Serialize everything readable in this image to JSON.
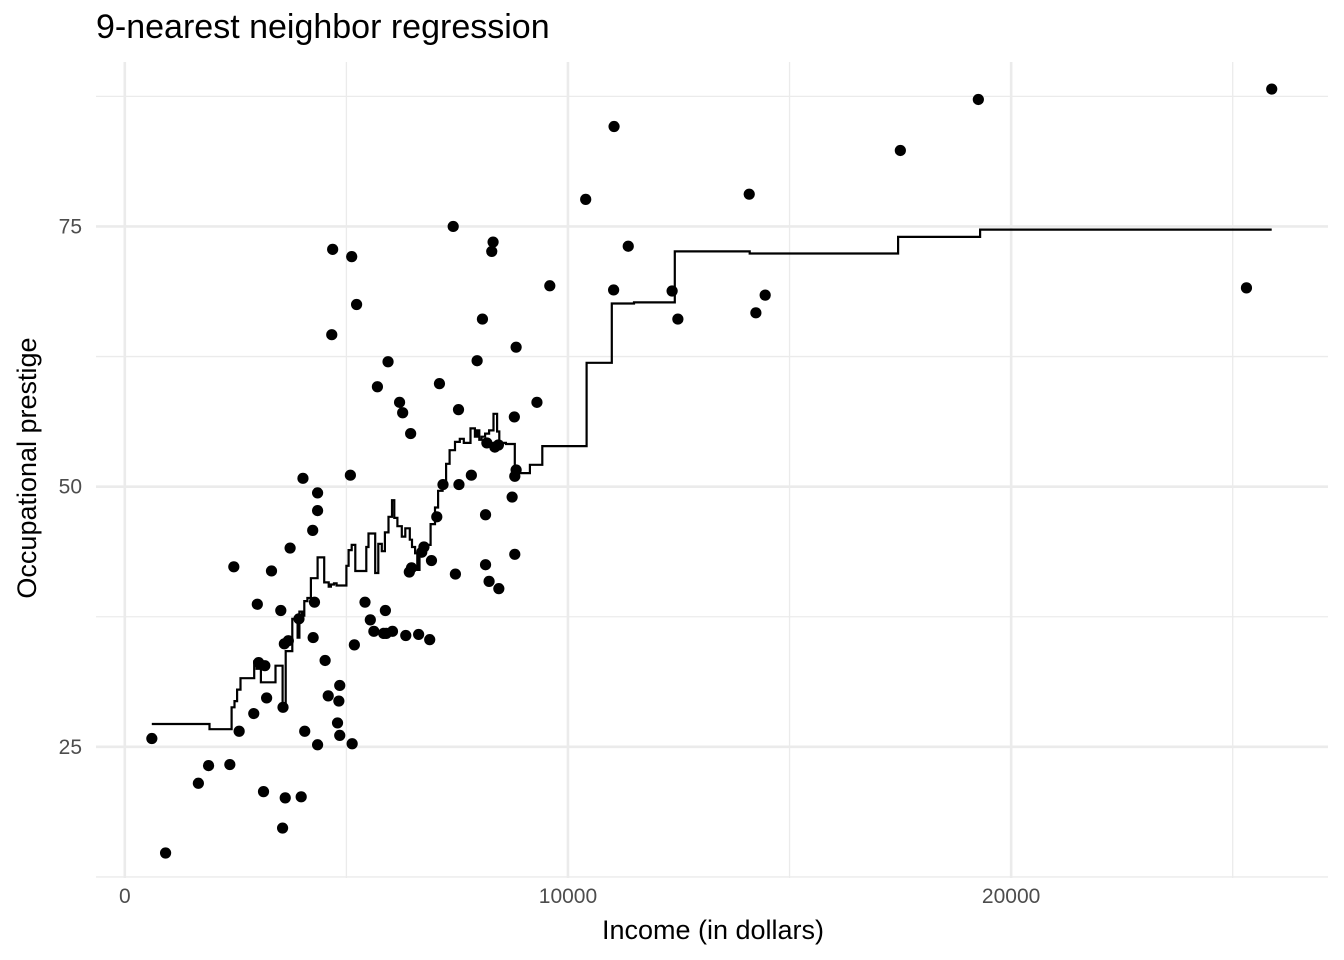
{
  "chart_data": {
    "type": "scatter",
    "title": "9-nearest neighbor regression",
    "xlabel": "Income (in dollars)",
    "ylabel": "Occupational prestige",
    "xlim": [
      -650,
      27150
    ],
    "ylim": [
      12.4,
      90.8
    ],
    "x_ticks": [
      0,
      10000,
      20000
    ],
    "x_tick_labels": [
      "0",
      "10000",
      "20000"
    ],
    "x_minor_ticks": [
      5000,
      15000,
      25000
    ],
    "y_ticks": [
      25,
      50,
      75
    ],
    "y_tick_labels": [
      "25",
      "50",
      "75"
    ],
    "y_minor_ticks": [
      12.5,
      37.5,
      62.5,
      87.5
    ],
    "grid": true,
    "legend": "none",
    "colors": {
      "points": "#000000",
      "line": "#000000",
      "grid": "#ebebeb",
      "background": "#ffffff"
    },
    "points": {
      "name": "",
      "x": [
        610,
        920,
        1660,
        1890,
        2370,
        2460,
        2580,
        2910,
        2990,
        3020,
        3130,
        3160,
        3200,
        3310,
        3520,
        3560,
        3570,
        3600,
        3620,
        3690,
        3730,
        3930,
        3980,
        4020,
        4060,
        4240,
        4250,
        4280,
        4350,
        4350,
        4350,
        4520,
        4590,
        4670,
        4690,
        4800,
        4830,
        4850,
        4850,
        5090,
        5120,
        5130,
        5180,
        5230,
        5420,
        5540,
        5620,
        5700,
        5840,
        5880,
        5900,
        5940,
        6040,
        6200,
        6270,
        6340,
        6450,
        6420,
        6470,
        6630,
        6700,
        6750,
        6880,
        6920,
        7040,
        7100,
        7180,
        7410,
        7460,
        7530,
        7540,
        7820,
        7950,
        8070,
        8140,
        8140,
        8170,
        8220,
        8280,
        8310,
        8350,
        8430,
        8440,
        8740,
        8790,
        8800,
        8800,
        8830,
        8830,
        9300,
        9590,
        10400,
        11030,
        11040,
        11360,
        12350,
        12480,
        14090,
        14240,
        14450,
        17500,
        19260,
        25310,
        25880
      ],
      "y": [
        25.8,
        14.8,
        21.5,
        23.2,
        23.3,
        42.3,
        26.5,
        28.2,
        38.7,
        33.1,
        20.7,
        32.8,
        29.7,
        41.9,
        38.1,
        17.2,
        28.8,
        34.9,
        20.1,
        35.2,
        44.1,
        37.3,
        20.2,
        50.8,
        26.5,
        45.8,
        35.5,
        38.9,
        25.2,
        47.7,
        49.4,
        33.3,
        29.9,
        64.6,
        72.8,
        27.3,
        29.4,
        26.1,
        30.9,
        51.1,
        72.1,
        25.3,
        34.8,
        67.5,
        38.9,
        37.2,
        36.1,
        59.6,
        35.9,
        38.1,
        35.9,
        62.0,
        36.1,
        58.1,
        57.1,
        35.7,
        55.1,
        41.8,
        42.2,
        35.8,
        43.7,
        44.2,
        35.3,
        42.9,
        47.1,
        59.9,
        50.2,
        75.0,
        41.6,
        57.4,
        50.2,
        51.1,
        62.1,
        66.1,
        42.5,
        47.3,
        54.2,
        40.9,
        72.6,
        73.5,
        53.8,
        54.0,
        40.2,
        49.0,
        56.7,
        43.5,
        51.0,
        51.6,
        63.4,
        58.1,
        69.3,
        77.6,
        68.9,
        84.6,
        73.1,
        68.8,
        66.1,
        78.1,
        66.7,
        68.4,
        82.3,
        87.2,
        69.1,
        88.2
      ]
    },
    "fit_line": {
      "name": "",
      "x": [
        610,
        1910,
        1910,
        2410,
        2410,
        2475,
        2475,
        2535,
        2535,
        2610,
        2610,
        2920,
        2920,
        2975,
        2975,
        3070,
        3070,
        3400,
        3400,
        3560,
        3560,
        3630,
        3630,
        3780,
        3780,
        3900,
        3900,
        3940,
        3940,
        4000,
        4000,
        4050,
        4050,
        4120,
        4120,
        4200,
        4200,
        4350,
        4350,
        4500,
        4500,
        4600,
        4600,
        4650,
        4650,
        4720,
        4720,
        4780,
        4780,
        5000,
        5000,
        5050,
        5050,
        5120,
        5120,
        5170,
        5170,
        5200,
        5200,
        5450,
        5450,
        5500,
        5500,
        5650,
        5650,
        5720,
        5720,
        5800,
        5800,
        5870,
        5870,
        5950,
        5950,
        6030,
        6030,
        6080,
        6080,
        6150,
        6150,
        6250,
        6250,
        6330,
        6330,
        6430,
        6430,
        6480,
        6480,
        6550,
        6550,
        6600,
        6600,
        6650,
        6650,
        6700,
        6700,
        6900,
        6900,
        7000,
        7000,
        7070,
        7070,
        7170,
        7170,
        7250,
        7250,
        7330,
        7330,
        7450,
        7450,
        7560,
        7560,
        7650,
        7650,
        7800,
        7800,
        7900,
        7900,
        7950,
        7950,
        8000,
        8000,
        8050,
        8050,
        8130,
        8130,
        8220,
        8220,
        8320,
        8320,
        8400,
        8400,
        8450,
        8450,
        8500,
        8500,
        8600,
        8600,
        8800,
        8800,
        9140,
        9140,
        9420,
        9420,
        10420,
        10420,
        10990,
        10990,
        11490,
        11490,
        12410,
        12410,
        12480,
        12480,
        14100,
        14100,
        14300,
        14300,
        17450,
        17450,
        19200,
        19200,
        19300,
        19300,
        25880
      ],
      "y": [
        27.2,
        27.2,
        26.7,
        26.7,
        28.8,
        28.8,
        29.4,
        29.4,
        30.5,
        30.5,
        31.6,
        31.6,
        33.2,
        33.2,
        32.5,
        32.5,
        31.2,
        31.2,
        32.8,
        32.8,
        29.1,
        29.1,
        34.2,
        34.2,
        37.3,
        37.3,
        35.5,
        35.5,
        38.0,
        38.0,
        37.6,
        37.6,
        39.0,
        39.0,
        39.3,
        39.3,
        41.2,
        41.2,
        43.2,
        43.2,
        40.8,
        40.8,
        40.4,
        40.4,
        40.6,
        40.6,
        40.7,
        40.7,
        40.5,
        40.5,
        42.4,
        42.4,
        43.9,
        43.9,
        44.4,
        44.4,
        44.4,
        44.4,
        41.9,
        41.9,
        44.2,
        44.2,
        45.5,
        45.5,
        41.7,
        41.7,
        44.5,
        44.5,
        43.8,
        43.8,
        45.6,
        45.6,
        47.1,
        47.1,
        48.7,
        48.7,
        47.0,
        47.0,
        46.2,
        46.2,
        45.2,
        45.2,
        46.0,
        46.0,
        44.9,
        44.9,
        44.2,
        44.2,
        43.6,
        43.6,
        42.0,
        42.0,
        43.5,
        43.5,
        44.4,
        44.4,
        46.4,
        46.4,
        48.0,
        48.0,
        49.6,
        49.6,
        50.3,
        50.3,
        52.2,
        52.2,
        53.5,
        53.5,
        54.3,
        54.3,
        54.6,
        54.6,
        54.2,
        54.2,
        55.6,
        55.6,
        54.8,
        54.8,
        55.4,
        55.4,
        54.5,
        54.5,
        54.8,
        54.8,
        55.1,
        55.1,
        55.4,
        55.4,
        57.0,
        57.0,
        55.3,
        55.3,
        54.3,
        54.3,
        54.2,
        54.2,
        54.1,
        54.1,
        51.3,
        51.3,
        52.1,
        52.1,
        53.9,
        53.9,
        61.9,
        61.9,
        67.6,
        67.6,
        67.7,
        67.7,
        72.6,
        72.6,
        72.6,
        72.6,
        72.4,
        72.4,
        72.4,
        72.4,
        74.0,
        74.0,
        74.0,
        74.0,
        74.7,
        74.7
      ]
    }
  }
}
